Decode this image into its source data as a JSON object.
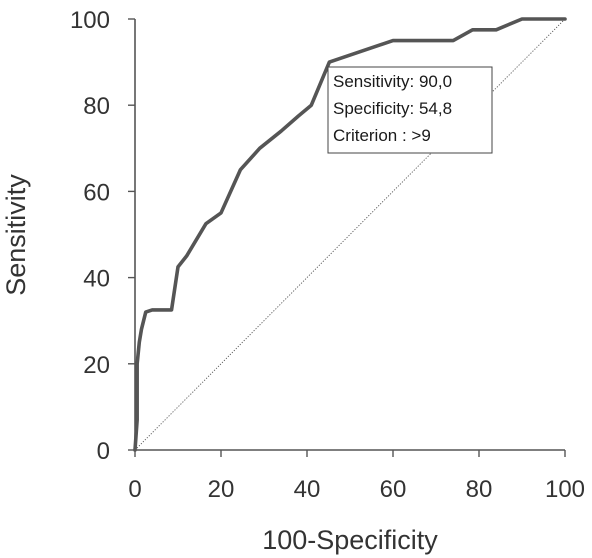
{
  "chart_data": {
    "type": "line",
    "xlabel": "100-Specificity",
    "ylabel": "Sensitivity",
    "xlim": [
      0,
      100
    ],
    "ylim": [
      0,
      100
    ],
    "x_ticks": [
      0,
      20,
      40,
      60,
      80,
      100
    ],
    "y_ticks": [
      0,
      20,
      40,
      60,
      80,
      100
    ],
    "grid": false,
    "series": [
      {
        "style": "solid",
        "color": "#555555",
        "x": [
          0,
          0.5,
          0.5,
          1,
          1.5,
          2.5,
          4,
          8.5,
          10,
          12,
          16.5,
          20,
          24.5,
          29,
          34,
          38,
          41,
          45.2,
          60,
          74,
          78.5,
          84,
          90,
          100
        ],
        "y": [
          0,
          7,
          20,
          25,
          28,
          32,
          32.5,
          32.5,
          42.5,
          45,
          52.5,
          55,
          65,
          70,
          74,
          77.5,
          80,
          90,
          95,
          95,
          97.5,
          97.5,
          100,
          100
        ]
      },
      {
        "style": "dotted",
        "color": "#555555",
        "x": [
          0,
          100
        ],
        "y": [
          0,
          100
        ]
      }
    ],
    "annotation": {
      "lines": [
        "Sensitivity: 90,0",
        "Specificity: 54,8",
        "Criterion : >9"
      ],
      "anchor_x": 45.2,
      "anchor_y": 90,
      "placement": "right-of-anchor"
    }
  }
}
